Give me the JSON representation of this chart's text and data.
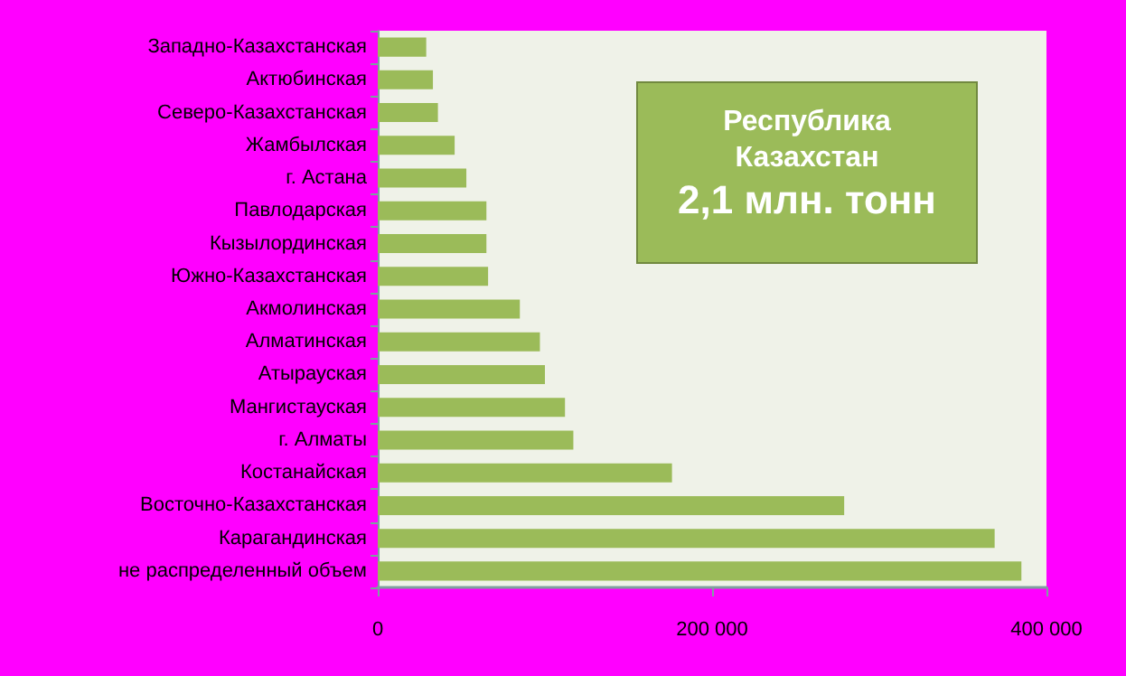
{
  "chart_data": {
    "type": "bar",
    "orientation": "horizontal",
    "categories": [
      "Западно-Казахстанская",
      "Актюбинская",
      "Северо-Казахстанская",
      "Жамбылская",
      "г. Астана",
      "Павлодарская",
      "Кызылординская",
      "Южно-Казахстанская",
      "Акмолинская",
      "Алматинская",
      "Атырауская",
      "Мангистауская",
      "г. Алматы",
      "Костанайская",
      "Восточно-Казахстанская",
      "Карагандинская",
      "не распределенный объем"
    ],
    "values": [
      29000,
      33000,
      36000,
      46000,
      53000,
      65000,
      65000,
      66000,
      85000,
      97000,
      100000,
      112000,
      117000,
      176000,
      279000,
      369000,
      385000
    ],
    "color": "#9bbb59",
    "xlim": [
      0,
      400000
    ],
    "xticks": [
      0,
      {
        "value": 200000,
        "label": "200 000"
      },
      {
        "value": 400000,
        "label": "400 000"
      }
    ],
    "grid": false,
    "annotations": [
      "Республика Казахстан",
      "2,1 млн. тонн"
    ]
  }
}
